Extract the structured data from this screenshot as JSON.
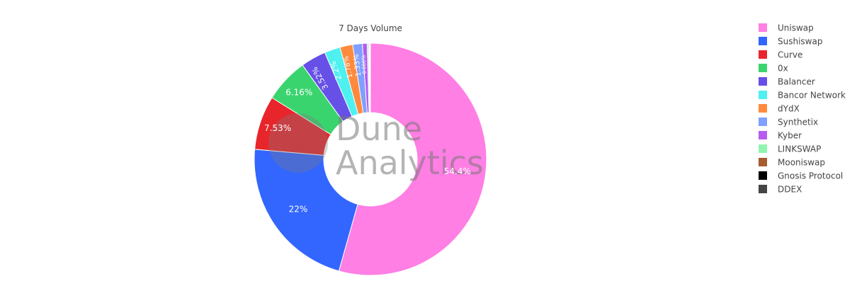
{
  "chart_data": {
    "type": "pie",
    "hole": true,
    "title": "7 Days Volume",
    "watermark": [
      "Dune",
      "Analytics"
    ],
    "legend_position": "right",
    "series": [
      {
        "name": "Uniswap",
        "value": 54.4,
        "label": "54.4%",
        "color": "#ff7fe4"
      },
      {
        "name": "Sushiswap",
        "value": 22.0,
        "label": "22%",
        "color": "#3366ff"
      },
      {
        "name": "Curve",
        "value": 7.53,
        "label": "7.53%",
        "color": "#e8252b"
      },
      {
        "name": "0x",
        "value": 6.16,
        "label": "6.16%",
        "color": "#3ad46e"
      },
      {
        "name": "Balancer",
        "value": 3.52,
        "label": "3.52%",
        "color": "#6650e8"
      },
      {
        "name": "Bancor Network",
        "value": 2.2,
        "label": "2.2%",
        "color": "#4ef0f0"
      },
      {
        "name": "dYdX",
        "value": 1.78,
        "label": "1.78%",
        "color": "#ff8a3d"
      },
      {
        "name": "Synthetix",
        "value": 1.33,
        "label": "1.33%",
        "color": "#7fa0ff"
      },
      {
        "name": "Kyber",
        "value": 0.666,
        "label": "0.666%",
        "color": "#b45cf0"
      },
      {
        "name": "LINKSWAP",
        "value": 0.2,
        "label": "",
        "color": "#8ff5b0"
      },
      {
        "name": "Mooniswap",
        "value": 0.12,
        "label": "",
        "color": "#a65c2e"
      },
      {
        "name": "Gnosis Protocol",
        "value": 0.08,
        "label": "",
        "color": "#000000"
      },
      {
        "name": "DDEX",
        "value": 0.05,
        "label": "",
        "color": "#444444"
      }
    ]
  }
}
